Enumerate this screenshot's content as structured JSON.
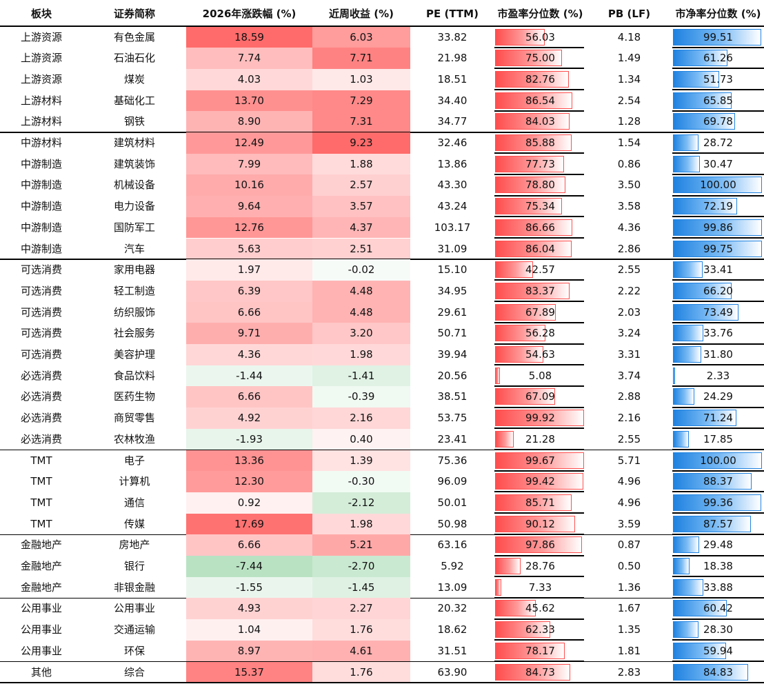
{
  "headers": [
    "板块",
    "证券简称",
    "2026年涨跌幅 (%)",
    "近周收益 (%)",
    "PE (TTM)",
    "市盈率分位数 (%)",
    "PB (LF)",
    "市净率分位数 (%)"
  ],
  "rows": [
    {
      "sector": "上游资源",
      "name": "有色金属",
      "ytd": "18.59",
      "week": "6.03",
      "pe": "33.82",
      "pe_pct": "56.03",
      "pb": "4.18",
      "pb_pct": "99.51"
    },
    {
      "sector": "上游资源",
      "name": "石油石化",
      "ytd": "7.74",
      "week": "7.71",
      "pe": "21.98",
      "pe_pct": "75.00",
      "pb": "1.49",
      "pb_pct": "61.26"
    },
    {
      "sector": "上游资源",
      "name": "煤炭",
      "ytd": "4.03",
      "week": "1.03",
      "pe": "18.51",
      "pe_pct": "82.76",
      "pb": "1.34",
      "pb_pct": "51.73"
    },
    {
      "sector": "上游材料",
      "name": "基础化工",
      "ytd": "13.70",
      "week": "7.29",
      "pe": "34.40",
      "pe_pct": "86.54",
      "pb": "2.54",
      "pb_pct": "65.85"
    },
    {
      "sector": "上游材料",
      "name": "钢铁",
      "ytd": "8.90",
      "week": "7.31",
      "pe": "34.77",
      "pe_pct": "84.03",
      "pb": "1.28",
      "pb_pct": "69.78"
    },
    {
      "sector": "中游材料",
      "name": "建筑材料",
      "ytd": "12.49",
      "week": "9.23",
      "pe": "32.46",
      "pe_pct": "85.88",
      "pb": "1.54",
      "pb_pct": "28.72"
    },
    {
      "sector": "中游制造",
      "name": "建筑装饰",
      "ytd": "7.99",
      "week": "1.88",
      "pe": "13.86",
      "pe_pct": "77.73",
      "pb": "0.86",
      "pb_pct": "30.47"
    },
    {
      "sector": "中游制造",
      "name": "机械设备",
      "ytd": "10.16",
      "week": "2.57",
      "pe": "43.30",
      "pe_pct": "78.80",
      "pb": "3.50",
      "pb_pct": "100.00"
    },
    {
      "sector": "中游制造",
      "name": "电力设备",
      "ytd": "9.64",
      "week": "3.57",
      "pe": "43.24",
      "pe_pct": "75.34",
      "pb": "3.58",
      "pb_pct": "72.19"
    },
    {
      "sector": "中游制造",
      "name": "国防军工",
      "ytd": "12.76",
      "week": "4.37",
      "pe": "103.17",
      "pe_pct": "86.66",
      "pb": "4.36",
      "pb_pct": "99.86"
    },
    {
      "sector": "中游制造",
      "name": "汽车",
      "ytd": "5.63",
      "week": "2.51",
      "pe": "31.09",
      "pe_pct": "86.04",
      "pb": "2.86",
      "pb_pct": "99.75"
    },
    {
      "sector": "可选消费",
      "name": "家用电器",
      "ytd": "1.97",
      "week": "-0.02",
      "pe": "15.10",
      "pe_pct": "42.57",
      "pb": "2.55",
      "pb_pct": "33.41"
    },
    {
      "sector": "可选消费",
      "name": "轻工制造",
      "ytd": "6.39",
      "week": "4.48",
      "pe": "34.95",
      "pe_pct": "83.37",
      "pb": "2.22",
      "pb_pct": "66.20"
    },
    {
      "sector": "可选消费",
      "name": "纺织服饰",
      "ytd": "6.66",
      "week": "4.48",
      "pe": "29.61",
      "pe_pct": "67.89",
      "pb": "2.03",
      "pb_pct": "73.49"
    },
    {
      "sector": "可选消费",
      "name": "社会服务",
      "ytd": "9.71",
      "week": "3.20",
      "pe": "50.71",
      "pe_pct": "56.28",
      "pb": "3.24",
      "pb_pct": "33.76"
    },
    {
      "sector": "可选消费",
      "name": "美容护理",
      "ytd": "4.36",
      "week": "1.98",
      "pe": "39.94",
      "pe_pct": "54.63",
      "pb": "3.31",
      "pb_pct": "31.80"
    },
    {
      "sector": "必选消费",
      "name": "食品饮料",
      "ytd": "-1.44",
      "week": "-1.41",
      "pe": "20.56",
      "pe_pct": "5.08",
      "pb": "3.74",
      "pb_pct": "2.33"
    },
    {
      "sector": "必选消费",
      "name": "医药生物",
      "ytd": "6.66",
      "week": "-0.39",
      "pe": "38.51",
      "pe_pct": "67.09",
      "pb": "2.88",
      "pb_pct": "24.29"
    },
    {
      "sector": "必选消费",
      "name": "商贸零售",
      "ytd": "4.92",
      "week": "2.16",
      "pe": "53.75",
      "pe_pct": "99.92",
      "pb": "2.16",
      "pb_pct": "71.24"
    },
    {
      "sector": "必选消费",
      "name": "农林牧渔",
      "ytd": "-1.93",
      "week": "0.40",
      "pe": "23.41",
      "pe_pct": "21.28",
      "pb": "2.55",
      "pb_pct": "17.85"
    },
    {
      "sector": "TMT",
      "name": "电子",
      "ytd": "13.36",
      "week": "1.39",
      "pe": "75.36",
      "pe_pct": "99.67",
      "pb": "5.71",
      "pb_pct": "100.00"
    },
    {
      "sector": "TMT",
      "name": "计算机",
      "ytd": "12.30",
      "week": "-0.30",
      "pe": "96.09",
      "pe_pct": "99.42",
      "pb": "4.96",
      "pb_pct": "88.37"
    },
    {
      "sector": "TMT",
      "name": "通信",
      "ytd": "0.92",
      "week": "-2.12",
      "pe": "50.01",
      "pe_pct": "85.71",
      "pb": "4.96",
      "pb_pct": "99.36"
    },
    {
      "sector": "TMT",
      "name": "传媒",
      "ytd": "17.69",
      "week": "1.98",
      "pe": "50.98",
      "pe_pct": "90.12",
      "pb": "3.59",
      "pb_pct": "87.57"
    },
    {
      "sector": "金融地产",
      "name": "房地产",
      "ytd": "6.66",
      "week": "5.21",
      "pe": "63.16",
      "pe_pct": "97.86",
      "pb": "0.87",
      "pb_pct": "29.48"
    },
    {
      "sector": "金融地产",
      "name": "银行",
      "ytd": "-7.44",
      "week": "-2.70",
      "pe": "5.92",
      "pe_pct": "28.76",
      "pb": "0.50",
      "pb_pct": "18.38"
    },
    {
      "sector": "金融地产",
      "name": "非银金融",
      "ytd": "-1.55",
      "week": "-1.45",
      "pe": "13.09",
      "pe_pct": "7.33",
      "pb": "1.36",
      "pb_pct": "33.88"
    },
    {
      "sector": "公用事业",
      "name": "公用事业",
      "ytd": "4.93",
      "week": "2.27",
      "pe": "20.32",
      "pe_pct": "45.62",
      "pb": "1.67",
      "pb_pct": "60.42"
    },
    {
      "sector": "公用事业",
      "name": "交通运输",
      "ytd": "1.04",
      "week": "1.76",
      "pe": "18.62",
      "pe_pct": "62.33",
      "pb": "1.35",
      "pb_pct": "28.30"
    },
    {
      "sector": "公用事业",
      "name": "环保",
      "ytd": "8.97",
      "week": "4.61",
      "pe": "31.51",
      "pe_pct": "78.17",
      "pb": "1.81",
      "pb_pct": "59.94"
    },
    {
      "sector": "其他",
      "name": "综合",
      "ytd": "15.37",
      "week": "1.76",
      "pe": "63.90",
      "pe_pct": "84.73",
      "pb": "2.83",
      "pb_pct": "84.83"
    }
  ],
  "colors": {
    "positive_max": "#ff6b6b",
    "negative_max": "#5dbb73",
    "pe_bar": "#ff4d4d",
    "pb_bar": "#1f82e0",
    "rule": "#000000"
  }
}
